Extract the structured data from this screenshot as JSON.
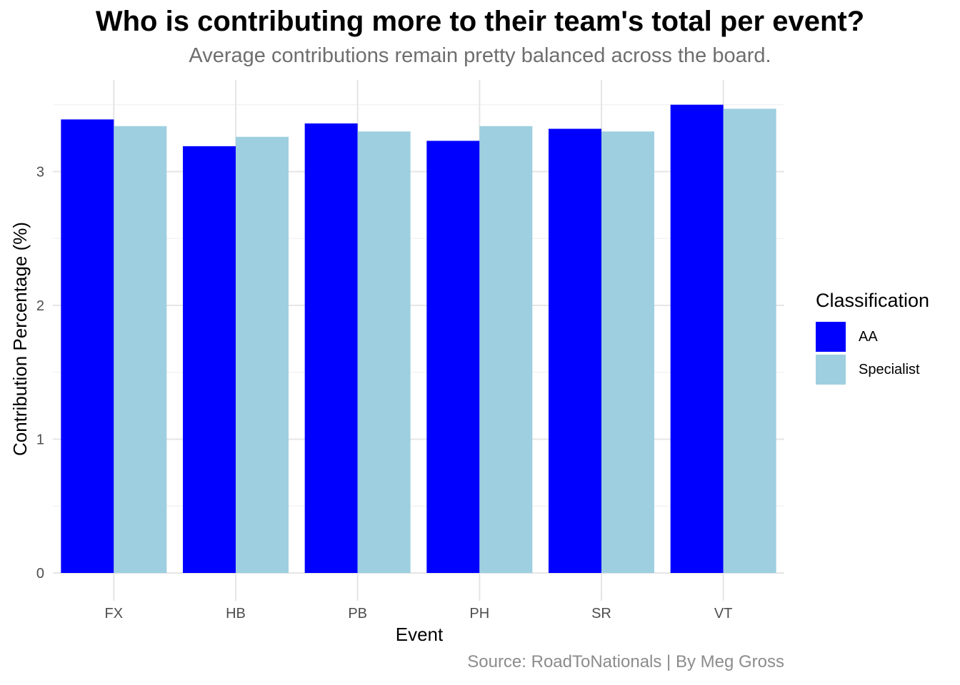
{
  "title": "Who is contributing more to their team's total per event?",
  "subtitle": "Average contributions remain pretty balanced across the board.",
  "caption": "Source: RoadToNationals | By Meg Gross",
  "legend": {
    "title": "Classification",
    "items": [
      {
        "label": "AA",
        "color": "#0000ff"
      },
      {
        "label": "Specialist",
        "color": "#9ecfe0"
      }
    ]
  },
  "chart_data": {
    "type": "bar",
    "title": "Who is contributing more to their team's total per event?",
    "subtitle": "Average contributions remain pretty balanced across the board.",
    "xlabel": "Event",
    "ylabel": "Contribution Percentage (%)",
    "categories": [
      "FX",
      "HB",
      "PB",
      "PH",
      "SR",
      "VT"
    ],
    "series": [
      {
        "name": "AA",
        "color": "#0000ff",
        "values": [
          3.39,
          3.19,
          3.36,
          3.23,
          3.32,
          3.5
        ]
      },
      {
        "name": "Specialist",
        "color": "#9ecfe0",
        "values": [
          3.34,
          3.26,
          3.3,
          3.34,
          3.3,
          3.47
        ]
      }
    ],
    "yticks": [
      0,
      1,
      2,
      3
    ],
    "ylim": [
      0,
      3.5
    ],
    "grid": true,
    "legend_position": "right"
  }
}
